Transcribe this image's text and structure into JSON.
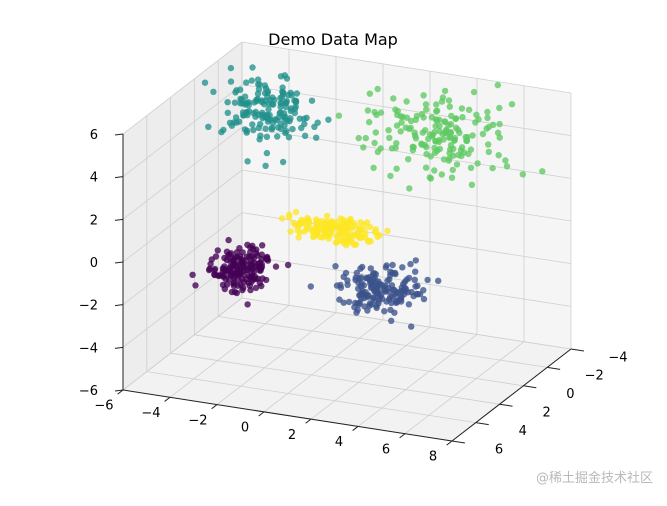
{
  "chart_data": {
    "type": "scatter3d",
    "title": "Demo Data Map",
    "xlabel": "",
    "ylabel": "",
    "zlabel": "",
    "xlim": [
      -6,
      8
    ],
    "ylim": [
      -4,
      6
    ],
    "zlim": [
      -6,
      6
    ],
    "x_ticks": [
      "−6",
      "−4",
      "−2",
      "0",
      "2",
      "4",
      "6",
      "8"
    ],
    "y_ticks": [
      "−4",
      "−2",
      "0",
      "2",
      "4",
      "6"
    ],
    "z_ticks": [
      "−6",
      "−4",
      "−2",
      "0",
      "2",
      "4",
      "6"
    ],
    "grid": true,
    "colormap": "viridis",
    "series": [
      {
        "center": [
          -3.0,
          2.0,
          -1.5
        ],
        "spread": [
          0.6,
          0.9,
          0.45
        ],
        "count": 160,
        "color": "#440154"
      },
      {
        "center": [
          3.0,
          2.0,
          -1.5
        ],
        "spread": [
          0.9,
          0.6,
          0.45
        ],
        "count": 160,
        "color": "#3b528b"
      },
      {
        "center": [
          -4.0,
          -2.0,
          4.0
        ],
        "spread": [
          0.9,
          0.7,
          0.7
        ],
        "count": 160,
        "color": "#21918c"
      },
      {
        "center": [
          3.0,
          -3.0,
          3.5
        ],
        "spread": [
          1.5,
          1.1,
          0.8
        ],
        "count": 170,
        "color": "#5ec962"
      },
      {
        "center": [
          0.0,
          0.0,
          0.0
        ],
        "spread": [
          1.0,
          0.3,
          0.25
        ],
        "count": 160,
        "color": "#fde725"
      }
    ]
  },
  "watermark": "@稀土掘金技术社区"
}
